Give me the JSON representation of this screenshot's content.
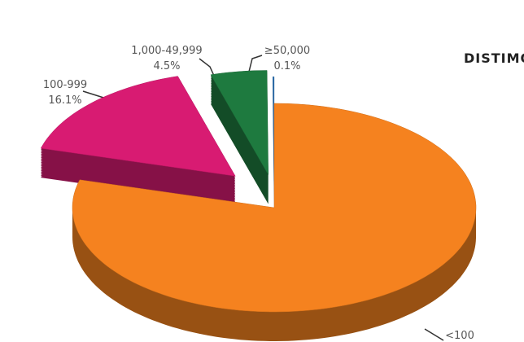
{
  "chart_data": {
    "type": "pie3d",
    "logo": "DISTIMO",
    "categories": [
      "<100",
      "100-999",
      "1,000-49,999",
      "≥50,000"
    ],
    "values": [
      79.3,
      16.1,
      4.5,
      0.1
    ],
    "value_labels": [
      null,
      "16.1%",
      "4.5%",
      "0.1%"
    ],
    "colors": [
      "#f5821f",
      "#d81b72",
      "#1e7a3f",
      "#2a6fb0"
    ]
  }
}
